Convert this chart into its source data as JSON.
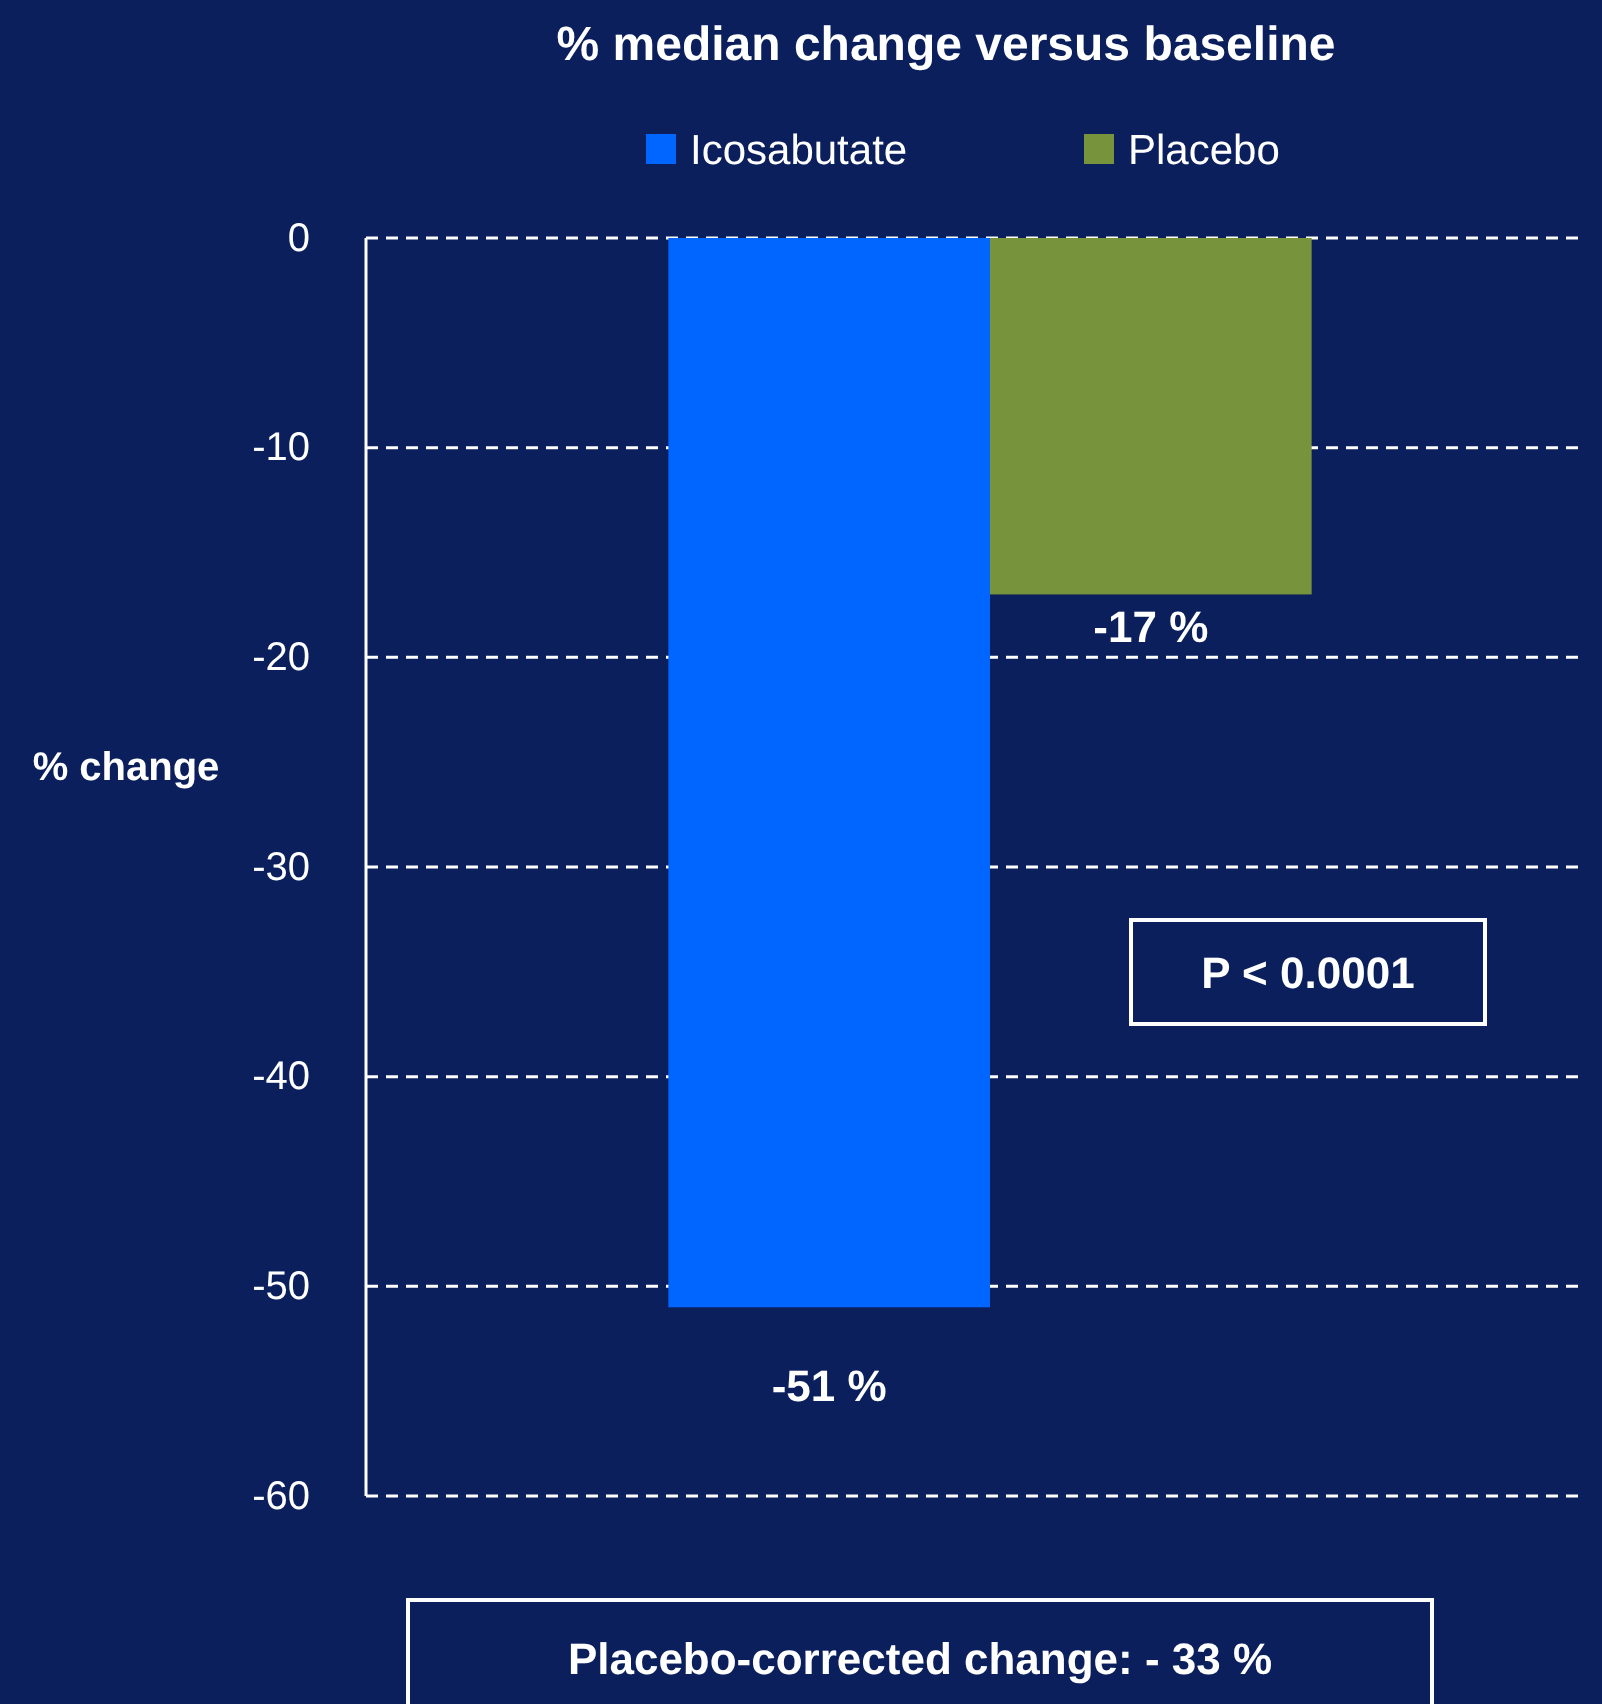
{
  "chart_data": {
    "type": "bar",
    "title": "% median change versus baseline",
    "ylabel": "% change",
    "categories": [
      null
    ],
    "series": [
      {
        "name": "Icosabutate",
        "color": "#0066ff",
        "values": [
          -51
        ],
        "value_labels": [
          "-51 %"
        ]
      },
      {
        "name": "Placebo",
        "color": "#77933c",
        "values": [
          -17
        ],
        "value_labels": [
          "-17 %"
        ]
      }
    ],
    "ylim": [
      -60,
      0
    ],
    "yticks": [
      0,
      -10,
      -20,
      -30,
      -40,
      -50,
      -60
    ],
    "grid": "y",
    "legend": "top",
    "annotations": [
      "P < 0.0001",
      "Placebo-corrected change: - 33 %"
    ]
  }
}
